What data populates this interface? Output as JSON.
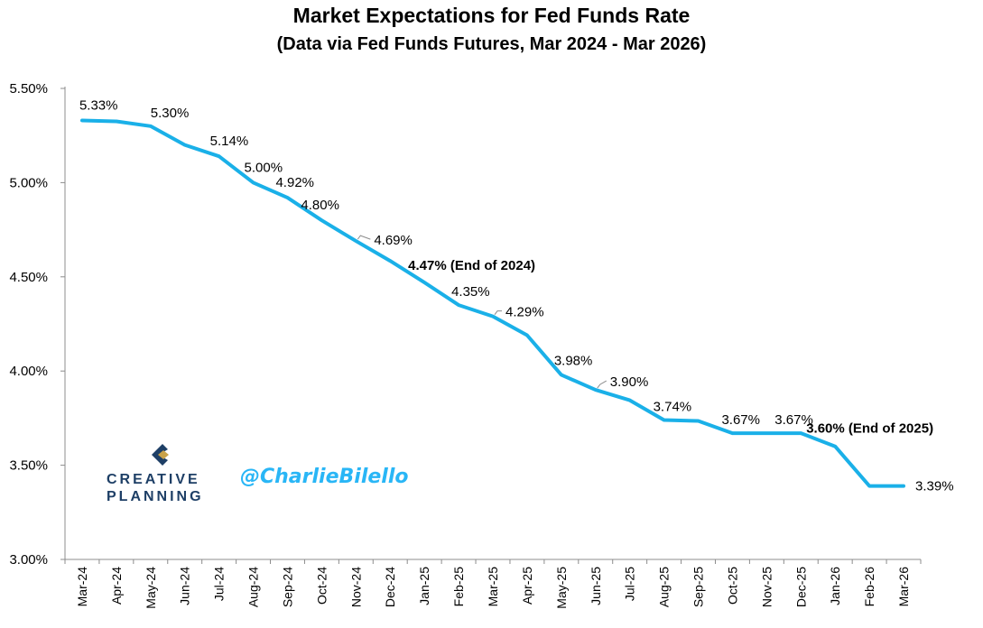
{
  "chart_data": {
    "type": "line",
    "title": "Market Expectations for Fed Funds Rate",
    "subtitle": "(Data via Fed Funds Futures, Mar 2024 - Mar 2026)",
    "xlabel": "",
    "ylabel": "",
    "ylim": [
      3.0,
      5.5
    ],
    "yticks": [
      "3.00%",
      "3.50%",
      "4.00%",
      "4.50%",
      "5.00%",
      "5.50%"
    ],
    "ytick_values": [
      3.0,
      3.5,
      4.0,
      4.5,
      5.0,
      5.5
    ],
    "grid": false,
    "line_color": "#1ab0e8",
    "categories": [
      "Mar-24",
      "Apr-24",
      "May-24",
      "Jun-24",
      "Jul-24",
      "Aug-24",
      "Sep-24",
      "Oct-24",
      "Nov-24",
      "Dec-24",
      "Jan-25",
      "Feb-25",
      "Mar-25",
      "Apr-25",
      "May-25",
      "Jun-25",
      "Jul-25",
      "Aug-25",
      "Sep-25",
      "Oct-25",
      "Nov-25",
      "Dec-25",
      "Jan-26",
      "Feb-26",
      "Mar-26"
    ],
    "values": [
      5.33,
      5.325,
      5.3,
      5.2,
      5.14,
      5.0,
      4.92,
      4.8,
      4.69,
      4.585,
      4.47,
      4.35,
      4.29,
      4.19,
      3.98,
      3.9,
      3.845,
      3.74,
      3.735,
      3.67,
      3.67,
      3.67,
      3.6,
      3.39,
      3.39
    ],
    "data_labels": [
      {
        "index": 0,
        "text": "5.33%"
      },
      {
        "index": 2,
        "text": "5.30%"
      },
      {
        "index": 4,
        "text": "5.14%"
      },
      {
        "index": 5,
        "text": "5.00%"
      },
      {
        "index": 6,
        "text": "4.92%"
      },
      {
        "index": 7,
        "text": "4.80%"
      },
      {
        "index": 8,
        "text": "4.69%"
      },
      {
        "index": 10,
        "text": "4.47% (End of 2024)",
        "bold": true
      },
      {
        "index": 11,
        "text": "4.35%"
      },
      {
        "index": 12,
        "text": "4.29%"
      },
      {
        "index": 14,
        "text": "3.98%"
      },
      {
        "index": 15,
        "text": "3.90%"
      },
      {
        "index": 17,
        "text": "3.74%"
      },
      {
        "index": 19,
        "text": "3.67%"
      },
      {
        "index": 21,
        "text": "3.67%"
      },
      {
        "index": 22,
        "text": "3.60% (End of 2025)",
        "bold": true
      },
      {
        "index": 24,
        "text": "3.39%"
      }
    ]
  },
  "logo": {
    "line1": "CREATIVE",
    "line2": "PLANNING",
    "icon": "creative-planning-c-logo",
    "colors": {
      "navy": "#1e3f66",
      "gold": "#c8a24a"
    }
  },
  "watermark": "@CharlieBilello"
}
